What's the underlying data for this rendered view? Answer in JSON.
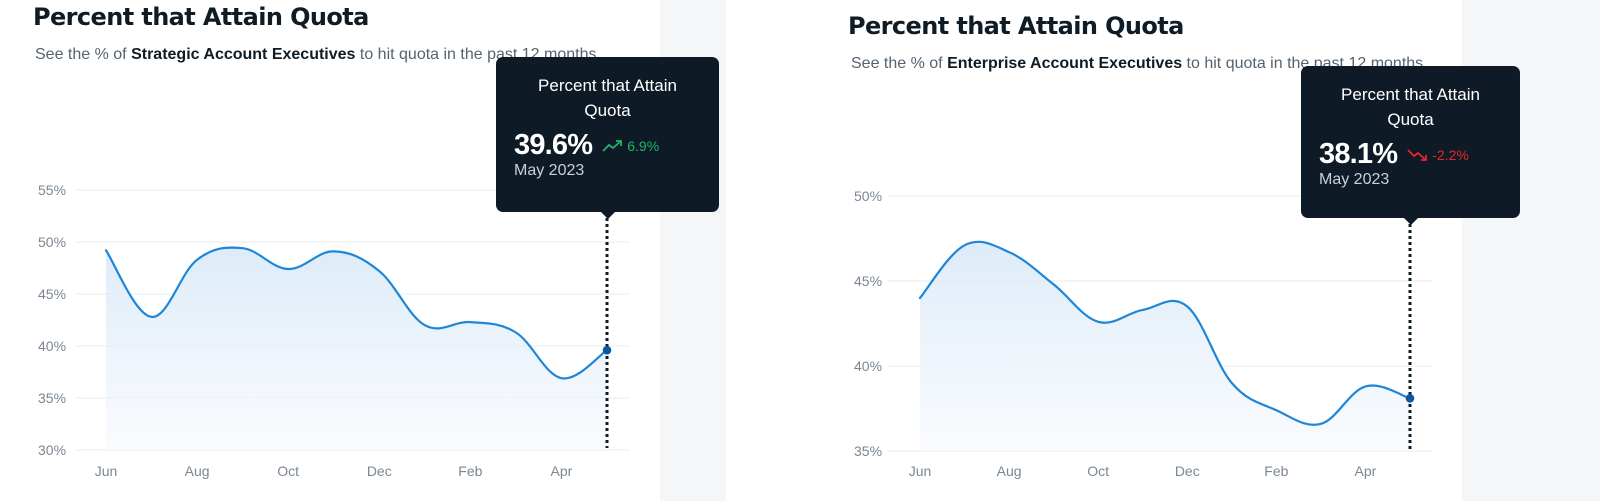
{
  "colors": {
    "line": "#1d86d8",
    "positive": "#21b36b",
    "negative": "#e5262a",
    "tooltip_bg": "#0e1b26"
  },
  "cards": [
    {
      "title": "Percent that Attain Quota",
      "subtitle_pre": "See the % of ",
      "subtitle_bold": "Strategic Account Executives",
      "subtitle_post": " to hit quota in the past 12 months",
      "tooltip": {
        "title": "Percent that Attain Quota",
        "value": "39.6%",
        "change": "6.9%",
        "change_direction": "up",
        "change_icon": "trending-up-icon",
        "date": "May 2023"
      }
    },
    {
      "title": "Percent that Attain Quota",
      "subtitle_pre": "See the % of ",
      "subtitle_bold": "Enterprise Account Executives",
      "subtitle_post": " to hit quota in the past 12 months",
      "tooltip": {
        "title": "Percent that Attain Quota",
        "value": "38.1%",
        "change": "-2.2%",
        "change_direction": "down",
        "change_icon": "trending-down-icon",
        "date": "May 2023"
      }
    }
  ],
  "chart_data": [
    {
      "type": "area",
      "title": "Percent that Attain Quota",
      "x": [
        "Jun 2022",
        "Jul 2022",
        "Aug 2022",
        "Sep 2022",
        "Oct 2022",
        "Nov 2022",
        "Dec 2022",
        "Jan 2023",
        "Feb 2023",
        "Mar 2023",
        "Apr 2023",
        "May 2023"
      ],
      "x_tick_labels": [
        "Jun",
        "Aug",
        "Oct",
        "Dec",
        "Feb",
        "Apr"
      ],
      "y_tick_labels": [
        "30%",
        "35%",
        "40%",
        "45%",
        "50%",
        "55%"
      ],
      "ylim": [
        30,
        55
      ],
      "y_ticks": [
        30,
        35,
        40,
        45,
        50,
        55
      ],
      "series": [
        {
          "values": [
            49.2,
            42.8,
            48.3,
            49.4,
            47.4,
            49.1,
            47.2,
            42.0,
            42.3,
            41.3,
            36.9,
            39.6
          ]
        }
      ],
      "highlight": {
        "x": "May 2023",
        "y": 39.6
      },
      "grid": true
    },
    {
      "type": "area",
      "title": "Percent that Attain Quota",
      "x": [
        "Jun 2022",
        "Jul 2022",
        "Aug 2022",
        "Sep 2022",
        "Oct 2022",
        "Nov 2022",
        "Dec 2022",
        "Jan 2023",
        "Feb 2023",
        "Mar 2023",
        "Apr 2023",
        "May 2023"
      ],
      "x_tick_labels": [
        "Jun",
        "Aug",
        "Oct",
        "Dec",
        "Feb",
        "Apr"
      ],
      "y_tick_labels": [
        "35%",
        "40%",
        "45%",
        "50%"
      ],
      "ylim": [
        35,
        50
      ],
      "y_ticks": [
        35,
        40,
        45,
        50
      ],
      "series": [
        {
          "values": [
            44.0,
            47.1,
            46.7,
            44.8,
            42.6,
            43.3,
            43.5,
            39.0,
            37.4,
            36.6,
            38.8,
            38.1
          ]
        }
      ],
      "highlight": {
        "x": "May 2023",
        "y": 38.1
      },
      "grid": true
    }
  ]
}
